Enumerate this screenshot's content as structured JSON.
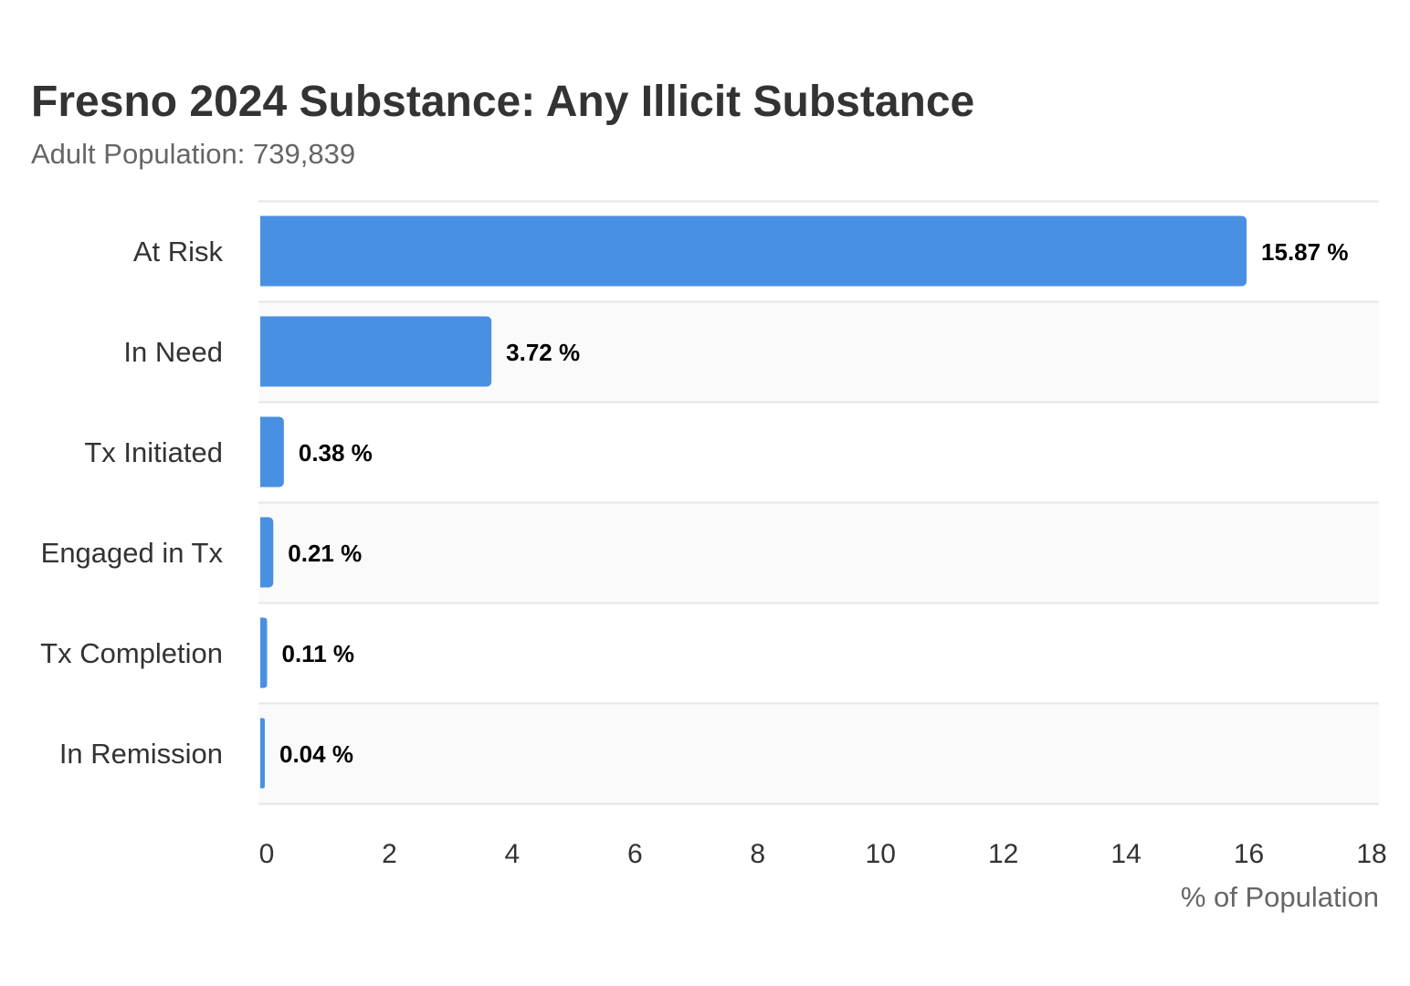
{
  "chart_data": {
    "type": "bar",
    "orientation": "horizontal",
    "title": "Fresno 2024 Substance: Any Illicit Substance",
    "subtitle": "Adult Population: 739,839",
    "xlabel": "% of Population",
    "ylabel": "",
    "categories": [
      "At Risk",
      "In Need",
      "Tx Initiated",
      "Engaged in Tx",
      "Tx Completion",
      "In Remission"
    ],
    "values": [
      15.87,
      3.72,
      0.38,
      0.21,
      0.11,
      0.04
    ],
    "data_labels": [
      "15.87 %",
      "3.72 %",
      "0.38 %",
      "0.21 %",
      "0.11 %",
      "0.04 %"
    ],
    "xlim": [
      0,
      18
    ],
    "xticks": [
      0,
      2,
      4,
      6,
      8,
      10,
      12,
      14,
      16,
      18
    ],
    "grid": false,
    "legend": "none",
    "colors": {
      "bar": "#4a90e2",
      "band": "#fafafa",
      "band_line": "#e6e6e6",
      "title": "#333333",
      "subtitle": "#666666",
      "category_label": "#333333",
      "data_label": "#000000",
      "tick": "#333333",
      "axis_title": "#666666"
    }
  }
}
